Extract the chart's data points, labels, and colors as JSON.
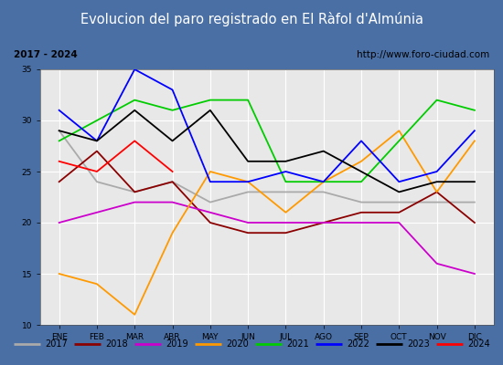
{
  "title": "Evolucion del paro registrado en El Ràfol d'Almúnia",
  "subtitle_left": "2017 - 2024",
  "subtitle_right": "http://www.foro-ciudad.com",
  "xlabel_months": [
    "ENE",
    "FEB",
    "MAR",
    "ABR",
    "MAY",
    "JUN",
    "JUL",
    "AGO",
    "SEP",
    "OCT",
    "NOV",
    "DIC"
  ],
  "ylim": [
    10,
    35
  ],
  "yticks": [
    10,
    15,
    20,
    25,
    30,
    35
  ],
  "series": {
    "2017": {
      "color": "#aaaaaa",
      "values": [
        29,
        24,
        23,
        24,
        22,
        23,
        23,
        23,
        22,
        22,
        22,
        22
      ]
    },
    "2018": {
      "color": "#8b0000",
      "values": [
        24,
        27,
        23,
        24,
        20,
        19,
        19,
        20,
        21,
        21,
        23,
        20
      ]
    },
    "2019": {
      "color": "#cc00cc",
      "values": [
        20,
        21,
        22,
        22,
        21,
        20,
        20,
        20,
        20,
        20,
        16,
        15
      ]
    },
    "2020": {
      "color": "#ff9900",
      "values": [
        15,
        14,
        11,
        19,
        25,
        24,
        21,
        24,
        26,
        29,
        23,
        28
      ]
    },
    "2021": {
      "color": "#00cc00",
      "values": [
        28,
        30,
        32,
        31,
        32,
        32,
        24,
        24,
        24,
        28,
        32,
        31
      ]
    },
    "2022": {
      "color": "#0000ff",
      "values": [
        31,
        28,
        35,
        33,
        24,
        24,
        25,
        24,
        28,
        24,
        25,
        29
      ]
    },
    "2023": {
      "color": "#000000",
      "values": [
        29,
        28,
        31,
        28,
        31,
        26,
        26,
        27,
        25,
        23,
        24,
        24
      ]
    },
    "2024": {
      "color": "#ff0000",
      "values": [
        26,
        25,
        28,
        25,
        null,
        null,
        null,
        null,
        null,
        null,
        null,
        null
      ]
    }
  },
  "title_bg_color": "#4a6fa5",
  "title_font_color": "#ffffff",
  "subtitle_bg_color": "#ffffff",
  "plot_bg_color": "#e8e8e8",
  "grid_color": "#ffffff",
  "outer_border_color": "#4a6fa5",
  "inner_border_color": "#4a6fa5",
  "legend_border_color": "#4a6fa5"
}
